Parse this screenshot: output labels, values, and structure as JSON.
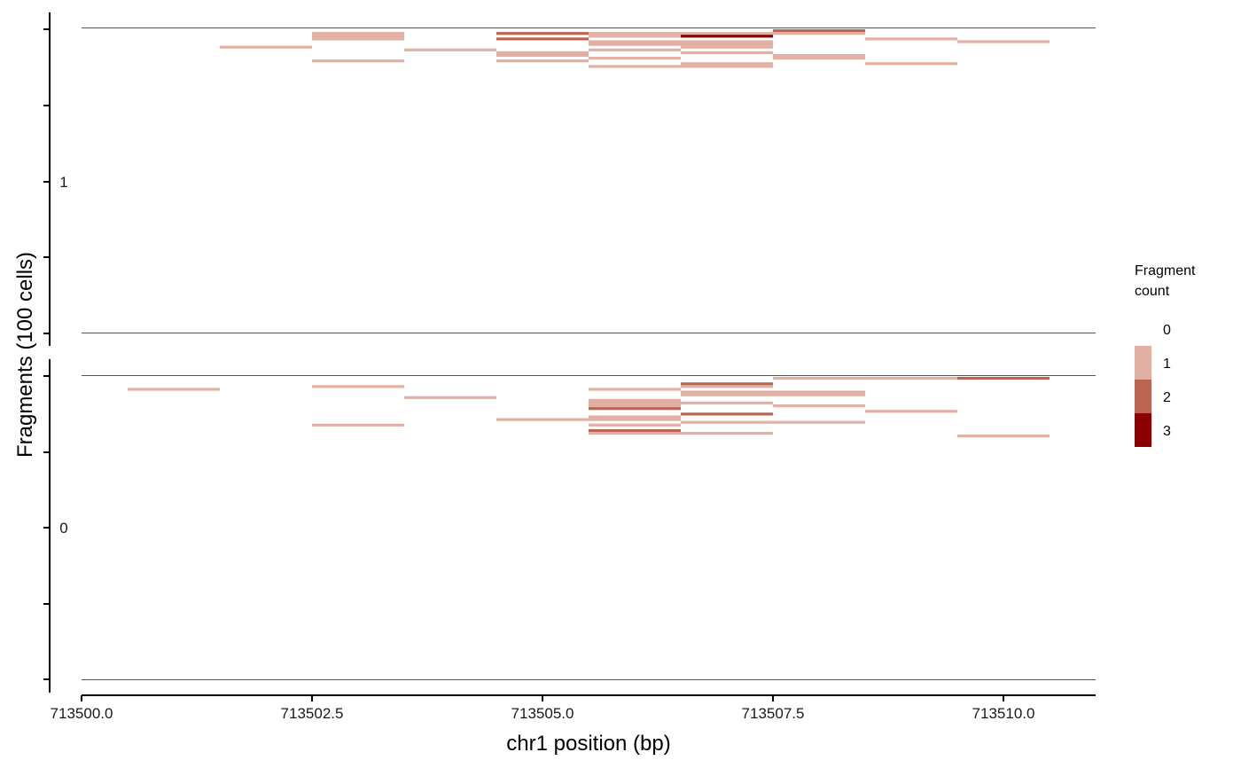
{
  "chart_data": {
    "type": "heatmap",
    "xlabel": "chr1 position (bp)",
    "ylabel": "Fragments (100 cells)",
    "xlim": [
      713500.0,
      713511.0
    ],
    "x_ticks": [
      "713500.0",
      "713502.5",
      "713505.0",
      "713507.5",
      "713510.0"
    ],
    "x_tick_values": [
      713500.0,
      713502.5,
      713505.0,
      713507.5,
      713510.0
    ],
    "panels": [
      {
        "label": "1",
        "fragments": [
          {
            "start": 713502.5,
            "end": 713503.5,
            "row": 1,
            "count": 1
          },
          {
            "start": 713502.5,
            "end": 713503.5,
            "row": 2,
            "count": 1
          },
          {
            "start": 713502.5,
            "end": 713503.5,
            "row": 3,
            "count": 1
          },
          {
            "start": 713502.5,
            "end": 713503.5,
            "row": 11,
            "count": 1
          },
          {
            "start": 713501.5,
            "end": 713502.5,
            "row": 6,
            "count": 1
          },
          {
            "start": 713503.5,
            "end": 713504.5,
            "row": 7,
            "count": 1
          },
          {
            "start": 713504.5,
            "end": 713505.5,
            "row": 1,
            "count": 2
          },
          {
            "start": 713504.5,
            "end": 713505.5,
            "row": 3,
            "count": 2
          },
          {
            "start": 713504.5,
            "end": 713505.5,
            "row": 8,
            "count": 1
          },
          {
            "start": 713504.5,
            "end": 713505.5,
            "row": 9,
            "count": 1
          },
          {
            "start": 713504.5,
            "end": 713505.5,
            "row": 11,
            "count": 1
          },
          {
            "start": 713505.5,
            "end": 713506.5,
            "row": 1,
            "count": 1
          },
          {
            "start": 713505.5,
            "end": 713506.5,
            "row": 2,
            "count": 1
          },
          {
            "start": 713505.5,
            "end": 713506.5,
            "row": 4,
            "count": 1
          },
          {
            "start": 713505.5,
            "end": 713506.5,
            "row": 5,
            "count": 1
          },
          {
            "start": 713505.5,
            "end": 713506.5,
            "row": 7,
            "count": 1
          },
          {
            "start": 713505.5,
            "end": 713506.5,
            "row": 10,
            "count": 1
          },
          {
            "start": 713505.5,
            "end": 713506.5,
            "row": 13,
            "count": 1
          },
          {
            "start": 713506.5,
            "end": 713507.5,
            "row": 1,
            "count": 1
          },
          {
            "start": 713506.5,
            "end": 713507.5,
            "row": 2,
            "count": 3
          },
          {
            "start": 713506.5,
            "end": 713507.5,
            "row": 4,
            "count": 1
          },
          {
            "start": 713506.5,
            "end": 713507.5,
            "row": 5,
            "count": 1
          },
          {
            "start": 713506.5,
            "end": 713507.5,
            "row": 6,
            "count": 1
          },
          {
            "start": 713506.5,
            "end": 713507.5,
            "row": 8,
            "count": 1
          },
          {
            "start": 713506.5,
            "end": 713507.5,
            "row": 12,
            "count": 1
          },
          {
            "start": 713506.5,
            "end": 713507.5,
            "row": 13,
            "count": 1
          },
          {
            "start": 713507.5,
            "end": 713508.5,
            "row": 0,
            "count": 2
          },
          {
            "start": 713507.5,
            "end": 713508.5,
            "row": 1,
            "count": 1
          },
          {
            "start": 713507.5,
            "end": 713508.5,
            "row": 9,
            "count": 1
          },
          {
            "start": 713507.5,
            "end": 713508.5,
            "row": 10,
            "count": 1
          },
          {
            "start": 713508.5,
            "end": 713509.5,
            "row": 3,
            "count": 1
          },
          {
            "start": 713508.5,
            "end": 713509.5,
            "row": 12,
            "count": 1
          },
          {
            "start": 713509.5,
            "end": 713510.5,
            "row": 4,
            "count": 1
          }
        ]
      },
      {
        "label": "0",
        "fragments": [
          {
            "start": 713500.5,
            "end": 713501.5,
            "row": 4,
            "count": 1
          },
          {
            "start": 713502.5,
            "end": 713503.5,
            "row": 3,
            "count": 1
          },
          {
            "start": 713502.5,
            "end": 713503.5,
            "row": 17,
            "count": 1
          },
          {
            "start": 713503.5,
            "end": 713504.5,
            "row": 7,
            "count": 1
          },
          {
            "start": 713504.5,
            "end": 713505.5,
            "row": 15,
            "count": 1
          },
          {
            "start": 713505.5,
            "end": 713506.5,
            "row": 4,
            "count": 1
          },
          {
            "start": 713505.5,
            "end": 713506.5,
            "row": 8,
            "count": 1
          },
          {
            "start": 713505.5,
            "end": 713506.5,
            "row": 9,
            "count": 1
          },
          {
            "start": 713505.5,
            "end": 713506.5,
            "row": 10,
            "count": 1
          },
          {
            "start": 713505.5,
            "end": 713506.5,
            "row": 11,
            "count": 2
          },
          {
            "start": 713505.5,
            "end": 713506.5,
            "row": 14,
            "count": 1
          },
          {
            "start": 713505.5,
            "end": 713506.5,
            "row": 15,
            "count": 1
          },
          {
            "start": 713505.5,
            "end": 713506.5,
            "row": 17,
            "count": 1
          },
          {
            "start": 713505.5,
            "end": 713506.5,
            "row": 19,
            "count": 2
          },
          {
            "start": 713505.5,
            "end": 713506.5,
            "row": 20,
            "count": 1
          },
          {
            "start": 713506.5,
            "end": 713507.5,
            "row": 2,
            "count": 2
          },
          {
            "start": 713506.5,
            "end": 713507.5,
            "row": 3,
            "count": 1
          },
          {
            "start": 713506.5,
            "end": 713507.5,
            "row": 5,
            "count": 1
          },
          {
            "start": 713506.5,
            "end": 713507.5,
            "row": 6,
            "count": 1
          },
          {
            "start": 713506.5,
            "end": 713507.5,
            "row": 9,
            "count": 1
          },
          {
            "start": 713506.5,
            "end": 713507.5,
            "row": 13,
            "count": 2
          },
          {
            "start": 713506.5,
            "end": 713507.5,
            "row": 16,
            "count": 1
          },
          {
            "start": 713506.5,
            "end": 713507.5,
            "row": 20,
            "count": 1
          },
          {
            "start": 713507.5,
            "end": 713508.5,
            "row": 0,
            "count": 1
          },
          {
            "start": 713507.5,
            "end": 713508.5,
            "row": 5,
            "count": 1
          },
          {
            "start": 713507.5,
            "end": 713508.5,
            "row": 6,
            "count": 1
          },
          {
            "start": 713507.5,
            "end": 713508.5,
            "row": 10,
            "count": 1
          },
          {
            "start": 713507.5,
            "end": 713508.5,
            "row": 16,
            "count": 1
          },
          {
            "start": 713508.5,
            "end": 713509.5,
            "row": 0,
            "count": 1
          },
          {
            "start": 713508.5,
            "end": 713509.5,
            "row": 12,
            "count": 1
          },
          {
            "start": 713509.5,
            "end": 713510.5,
            "row": 0,
            "count": 2
          },
          {
            "start": 713509.5,
            "end": 713510.5,
            "row": 21,
            "count": 1
          }
        ]
      }
    ],
    "legend": {
      "title_lines": [
        "Fragment",
        "count"
      ],
      "placement": "right",
      "levels": [
        {
          "label": "0",
          "color": "#ffffff"
        },
        {
          "label": "1",
          "color": "#e2b0a3"
        },
        {
          "label": "2",
          "color": "#bb6450"
        },
        {
          "label": "3",
          "color": "#8b0000"
        }
      ]
    }
  }
}
